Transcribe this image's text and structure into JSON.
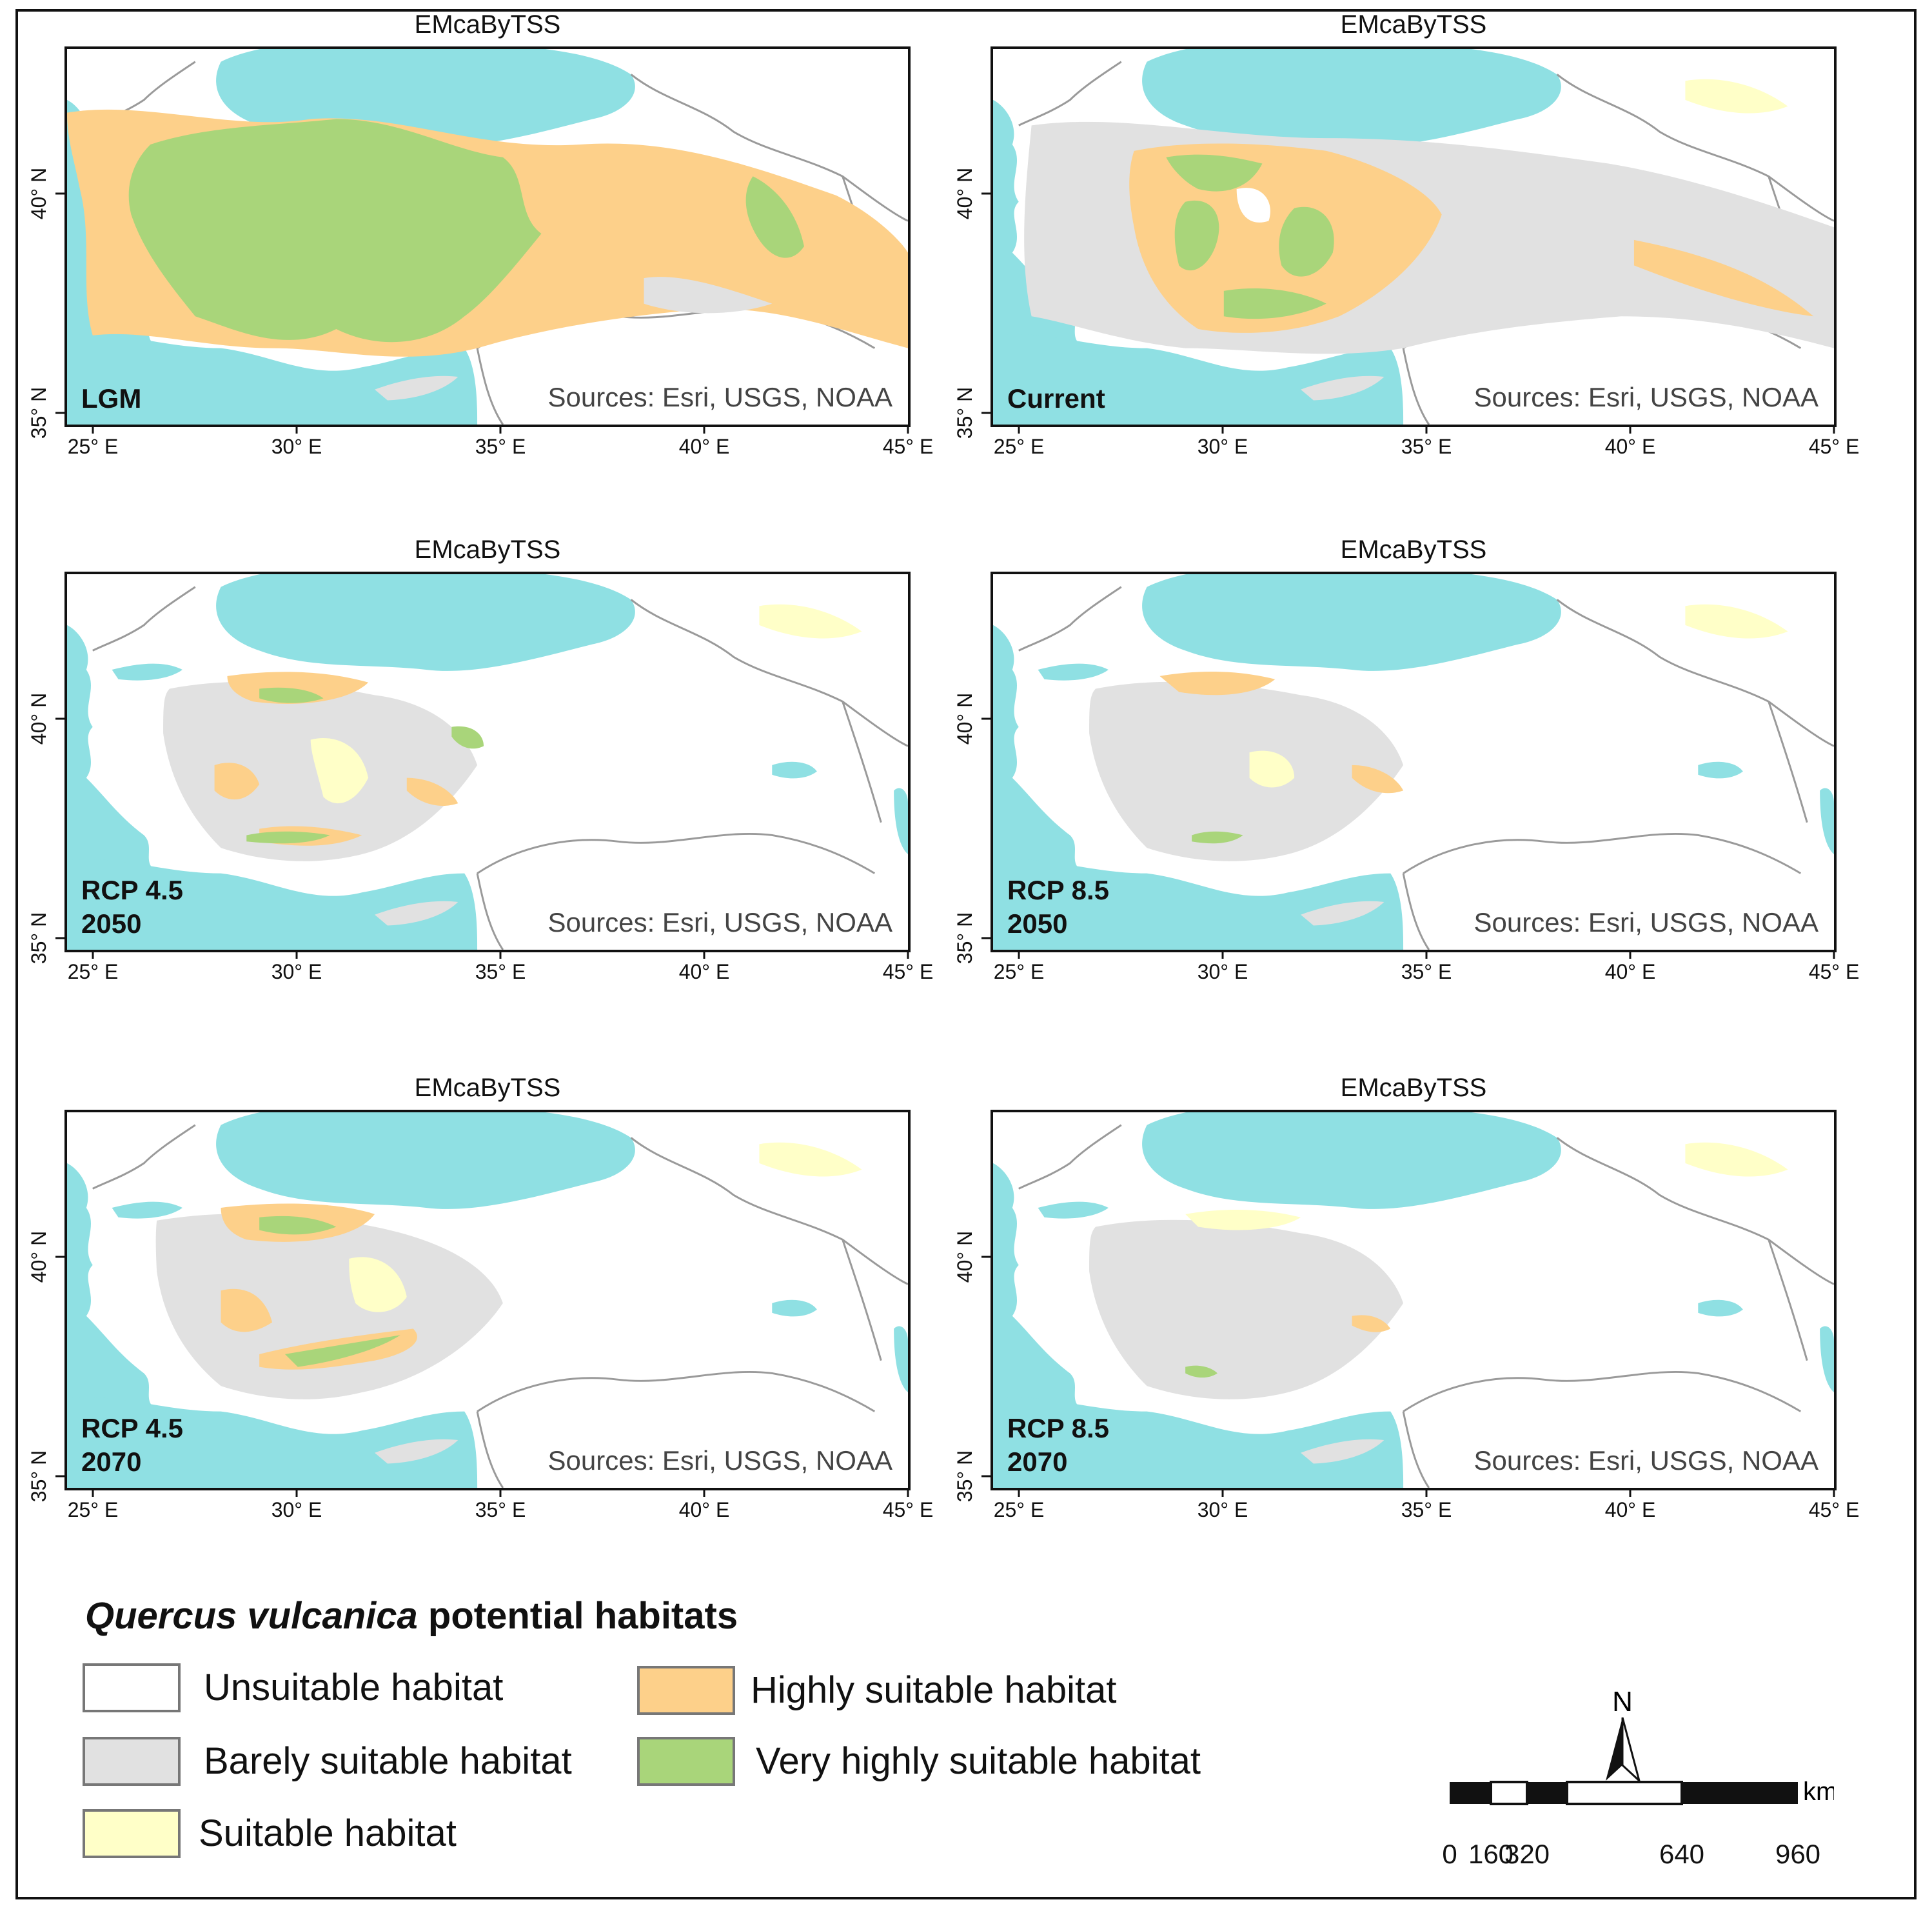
{
  "figure": {
    "legend_title_italic": "Quercus vulcanica",
    "legend_title_rest": " potential habitats"
  },
  "axes": {
    "x_ticks": [
      "25° E",
      "30° E",
      "35° E",
      "40° E",
      "45° E"
    ],
    "y_ticks": [
      "40° N",
      "35° N"
    ]
  },
  "panels": [
    {
      "title": "EMcaByTSS",
      "period": "LGM",
      "sources": "Sources: Esri, USGS, NOAA"
    },
    {
      "title": "EMcaByTSS",
      "period": "Current",
      "sources": "Sources: Esri, USGS, NOAA"
    },
    {
      "title": "EMcaByTSS",
      "period": "RCP 4.5\n2050",
      "sources": "Sources: Esri, USGS, NOAA"
    },
    {
      "title": "EMcaByTSS",
      "period": "RCP 8.5\n2050",
      "sources": "Sources: Esri, USGS, NOAA"
    },
    {
      "title": "EMcaByTSS",
      "period": "RCP 4.5\n2070",
      "sources": "Sources: Esri, USGS, NOAA"
    },
    {
      "title": "EMcaByTSS",
      "period": "RCP 8.5\n2070",
      "sources": "Sources: Esri, USGS, NOAA"
    }
  ],
  "legend": [
    {
      "label": "Unsuitable habitat",
      "color": "#ffffff"
    },
    {
      "label": "Barely suitable habitat",
      "color": "#e1e1e1"
    },
    {
      "label": "Suitable habitat",
      "color": "#ffffc8"
    },
    {
      "label": "Highly suitable habitat",
      "color": "#fdd08a"
    },
    {
      "label": "Very highly suitable habitat",
      "color": "#a9d57a"
    }
  ],
  "colors": {
    "sea": "#8fe0e3",
    "unsuitable": "#ffffff",
    "barely": "#e1e1e1",
    "suitable": "#ffffc8",
    "highly": "#fdd08a",
    "very_highly": "#a9d57a",
    "borders": "#9a9a9a"
  },
  "scale": {
    "north": "N",
    "unit": "km",
    "labels": [
      "0",
      "160",
      "320",
      "640",
      "960"
    ]
  }
}
